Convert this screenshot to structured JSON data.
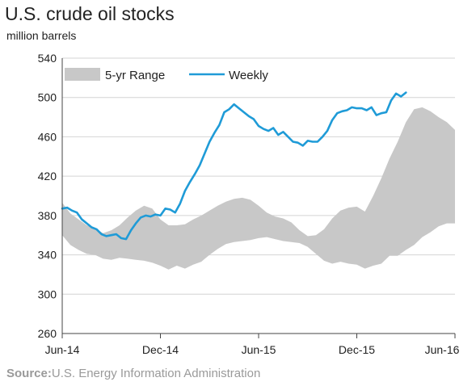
{
  "chart_data": {
    "type": "line",
    "title": "U.S. crude oil stocks",
    "subtitle": "million barrels",
    "source_label": "Source:",
    "source_text": "U.S. Energy Information Administration",
    "ylim": [
      260,
      540
    ],
    "yticks": [
      260,
      300,
      340,
      380,
      420,
      460,
      500,
      540
    ],
    "xlim": [
      0,
      24
    ],
    "xtick_positions": [
      0,
      6,
      12,
      18,
      24
    ],
    "xtick_labels": [
      "Jun-14",
      "Dec-14",
      "Jun-15",
      "Dec-15",
      "Jun-16"
    ],
    "grid": true,
    "legend_position": "top-left",
    "colors": {
      "range": "#c8c8c8",
      "weekly": "#1f9bd7",
      "grid": "#d4d4d4",
      "axis": "#444444"
    },
    "series": [
      {
        "name": "5-yr Range",
        "kind": "band",
        "x": [
          0,
          0.5,
          1,
          1.5,
          2,
          2.5,
          3,
          3.5,
          4,
          4.5,
          5,
          5.5,
          6,
          6.5,
          7,
          7.5,
          8,
          8.5,
          9,
          9.5,
          10,
          10.5,
          11,
          11.5,
          12,
          12.5,
          13,
          13.5,
          14,
          14.5,
          15,
          15.5,
          16,
          16.5,
          17,
          17.5,
          18,
          18.5,
          19,
          19.5,
          20,
          20.5,
          21,
          21.5,
          22,
          22.5,
          23,
          23.5,
          24
        ],
        "low": [
          360,
          350,
          345,
          341,
          340,
          336,
          335,
          337,
          336,
          335,
          334,
          332,
          329,
          325,
          329,
          326,
          330,
          333,
          340,
          346,
          351,
          353,
          354,
          355,
          357,
          358,
          356,
          354,
          353,
          352,
          348,
          341,
          334,
          331,
          333,
          331,
          330,
          326,
          329,
          331,
          339,
          339,
          345,
          350,
          358,
          363,
          369,
          372,
          372
        ],
        "high": [
          393,
          382,
          376,
          370,
          367,
          362,
          365,
          370,
          378,
          385,
          390,
          387,
          376,
          370,
          370,
          371,
          376,
          380,
          385,
          390,
          394,
          397,
          398,
          396,
          390,
          383,
          379,
          377,
          373,
          365,
          359,
          360,
          366,
          377,
          385,
          388,
          389,
          384,
          400,
          418,
          438,
          455,
          475,
          488,
          490,
          486,
          480,
          475,
          467
        ]
      },
      {
        "name": "Weekly",
        "kind": "line",
        "x": [
          0,
          0.3,
          0.6,
          0.9,
          1.2,
          1.5,
          1.8,
          2.1,
          2.4,
          2.7,
          3.0,
          3.3,
          3.6,
          3.9,
          4.2,
          4.5,
          4.8,
          5.1,
          5.4,
          5.7,
          6.0,
          6.3,
          6.6,
          6.9,
          7.2,
          7.5,
          7.8,
          8.1,
          8.4,
          8.7,
          9.0,
          9.3,
          9.6,
          9.9,
          10.2,
          10.5,
          10.8,
          11.1,
          11.4,
          11.7,
          12.0,
          12.3,
          12.6,
          12.9,
          13.2,
          13.5,
          13.8,
          14.1,
          14.4,
          14.7,
          15.0,
          15.3,
          15.6,
          15.9,
          16.2,
          16.5,
          16.8,
          17.1,
          17.4,
          17.7,
          18.0,
          18.3,
          18.6,
          18.9,
          19.2,
          19.5,
          19.8,
          20.1,
          20.4,
          20.7,
          21.0
        ],
        "values": [
          387,
          388,
          385,
          383,
          376,
          372,
          368,
          366,
          361,
          359,
          360,
          361,
          357,
          356,
          365,
          372,
          378,
          380,
          379,
          381,
          380,
          387,
          386,
          383,
          392,
          405,
          414,
          422,
          431,
          443,
          455,
          464,
          472,
          485,
          488,
          493,
          489,
          485,
          481,
          478,
          471,
          468,
          466,
          469,
          462,
          465,
          460,
          455,
          454,
          451,
          456,
          455,
          455,
          460,
          466,
          477,
          484,
          486,
          487,
          490,
          489,
          489,
          487,
          490,
          482,
          484,
          485,
          497,
          504,
          501,
          505
        ]
      }
    ]
  }
}
